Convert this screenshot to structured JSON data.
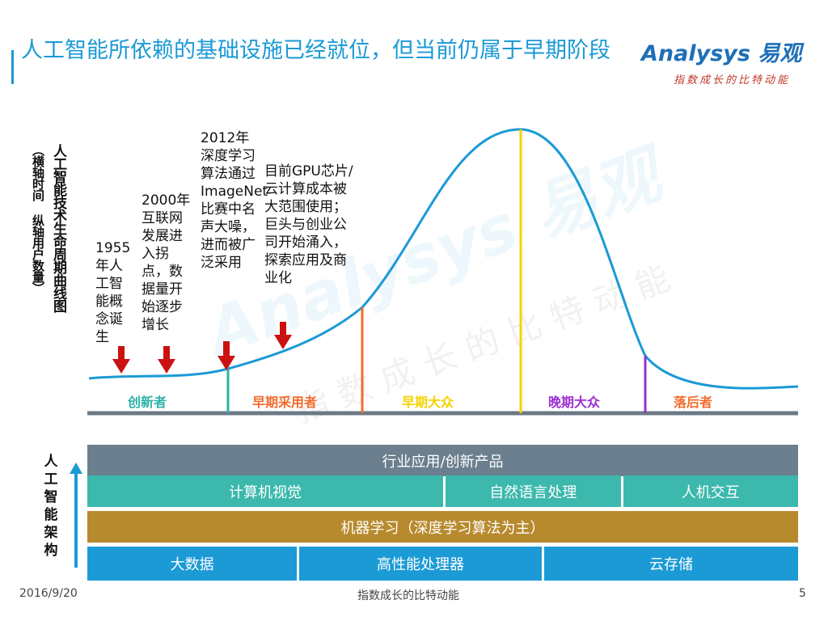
{
  "title": "人工智能所依赖的基础设施已经就位，但当前仍属于早期阶段",
  "logo": {
    "main": "Analysys 易观",
    "sub": "指数成长的比特动能"
  },
  "watermark": {
    "main": "Analysys 易观",
    "sub": "指数成长的比特动能"
  },
  "curve_label": {
    "main": "人工智能技术生命周期曲线图",
    "sub": "（横轴时间  纵轴用户数量）"
  },
  "milestones": [
    {
      "text": "1955年人工智能概念诞生"
    },
    {
      "text": "2000年互联网发展进入拐点，数据量开始逐步增长"
    },
    {
      "text": "2012年深度学习算法通过ImageNet比赛中名声大噪，进而被广泛采用"
    },
    {
      "text": "目前GPU芯片/云计算成本被大范围使用；巨头与创业公司开始涌入，探索应用及商业化"
    }
  ],
  "phases": [
    {
      "label": "创新者",
      "color": "#2bb3a8"
    },
    {
      "label": "早期采用者",
      "color": "#f26b2e"
    },
    {
      "label": "早期大众",
      "color": "#f5d300"
    },
    {
      "label": "晚期大众",
      "color": "#9b2fd1"
    },
    {
      "label": "落后者",
      "color": "#f26b2e"
    }
  ],
  "arch_label": "人工智能架构",
  "architecture": {
    "row1": [
      "行业应用/创新产品"
    ],
    "row2": [
      "计算机视觉",
      "自然语言处理",
      "人机交互"
    ],
    "row3": [
      "机器学习（深度学习算法为主）"
    ],
    "row4": [
      "大数据",
      "高性能处理器",
      "云存储"
    ]
  },
  "colors": {
    "row1": "#6b7f8e",
    "row2": "#3cb8ad",
    "row3": "#b88a2e",
    "row4": "#1b9ad6",
    "curve": "#1b9ad6",
    "marker": "#cc1111",
    "baseline": "#6b7a85"
  },
  "footer": {
    "date": "2016/9/20",
    "center": "指数成长的比特动能",
    "page": "5"
  }
}
